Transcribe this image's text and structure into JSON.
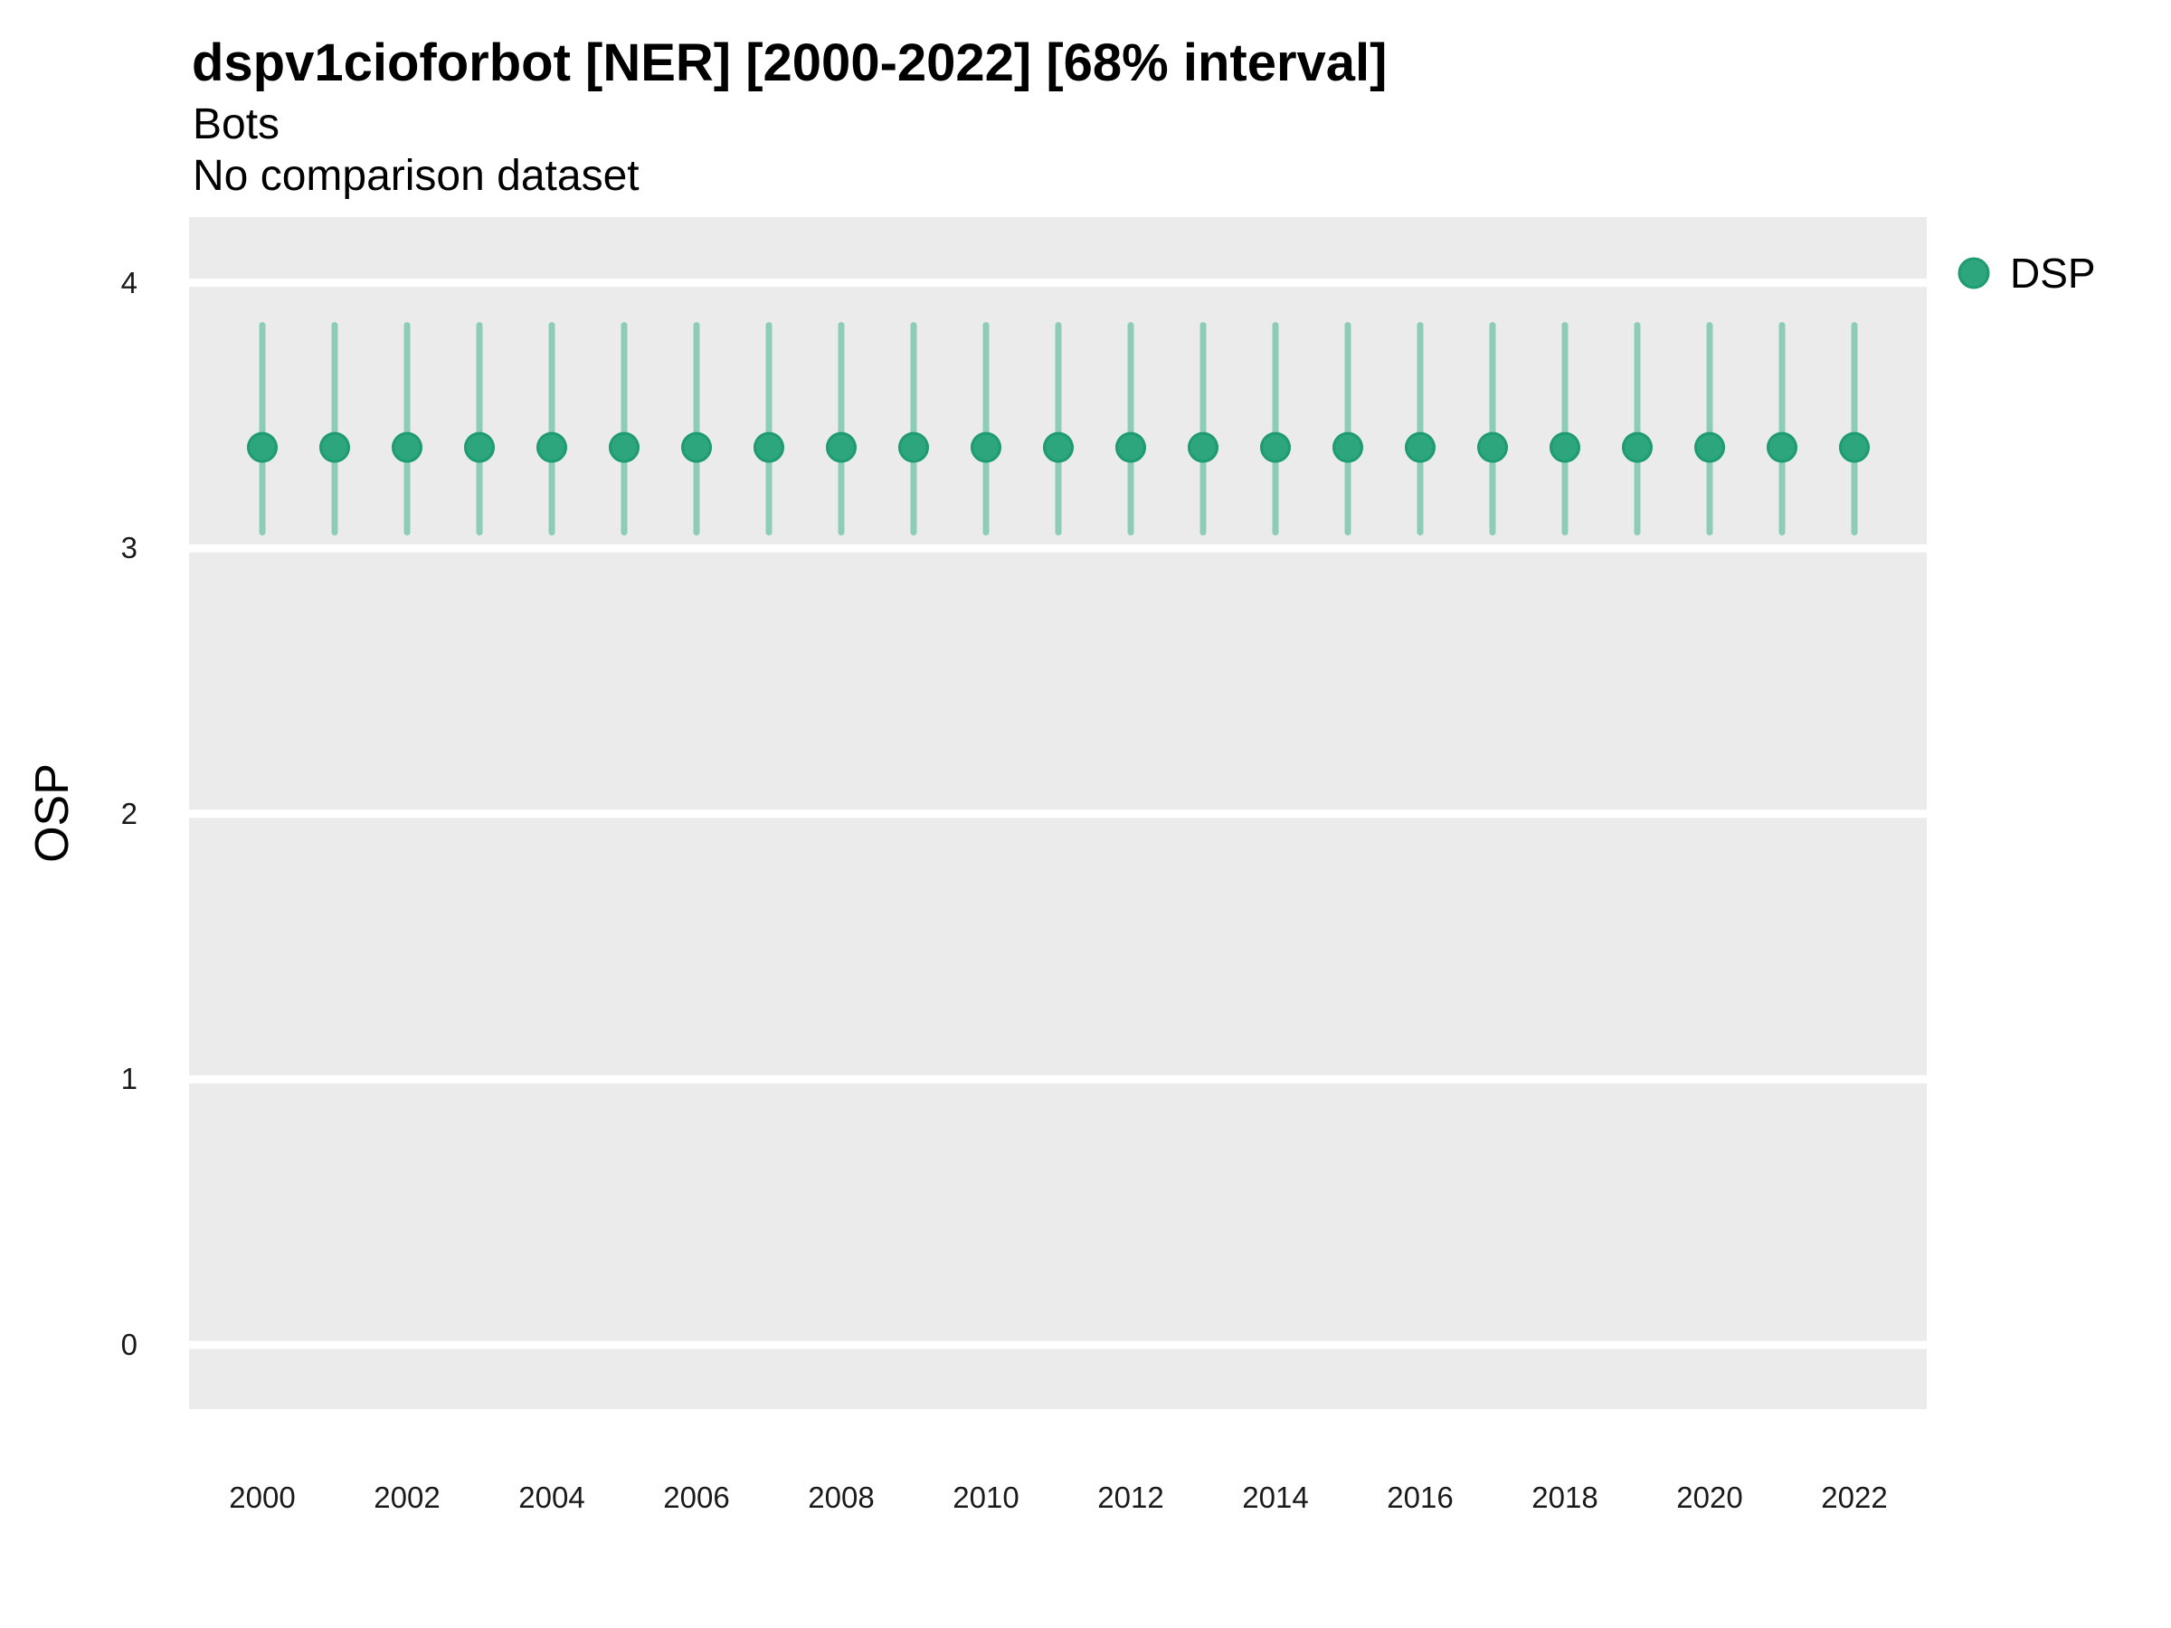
{
  "header": {
    "title": "dspv1cioforbot [NER] [2000-2022] [68% interval]",
    "subtitle": "Bots",
    "comparison_note": "No comparison dataset"
  },
  "y_axis": {
    "label": "OSP"
  },
  "legend": {
    "label": "DSP"
  },
  "colors": {
    "panel_bg": "#ebebeb",
    "gridline": "#ffffff",
    "point_fill": "#2da57d",
    "point_stroke": "#1e9b71",
    "interval_line": "#8dcdb8",
    "text": "#000000"
  },
  "chart_data": {
    "type": "scatter",
    "title": "dspv1cioforbot [NER] [2000-2022] [68% interval]",
    "subtitle": "Bots",
    "note": "No comparison dataset",
    "xlabel": "",
    "ylabel": "OSP",
    "interval": "68%",
    "legend_position": "right",
    "grid": "horizontal-major-only",
    "xlim": [
      1999,
      2023
    ],
    "ylim": [
      -0.24,
      4.25
    ],
    "x_ticks": [
      2000,
      2002,
      2004,
      2006,
      2008,
      2010,
      2012,
      2014,
      2016,
      2018,
      2020,
      2022
    ],
    "y_ticks": [
      0,
      1,
      2,
      3,
      4
    ],
    "x": [
      2000,
      2001,
      2002,
      2003,
      2004,
      2005,
      2006,
      2007,
      2008,
      2009,
      2010,
      2011,
      2012,
      2013,
      2014,
      2015,
      2016,
      2017,
      2018,
      2019,
      2020,
      2021,
      2022
    ],
    "series": [
      {
        "name": "DSP",
        "values": [
          3.38,
          3.38,
          3.38,
          3.38,
          3.38,
          3.38,
          3.38,
          3.38,
          3.38,
          3.38,
          3.38,
          3.38,
          3.38,
          3.38,
          3.38,
          3.38,
          3.38,
          3.38,
          3.38,
          3.38,
          3.38,
          3.38,
          3.38
        ],
        "lower_68": [
          3.06,
          3.06,
          3.06,
          3.06,
          3.06,
          3.06,
          3.06,
          3.06,
          3.06,
          3.06,
          3.06,
          3.06,
          3.06,
          3.06,
          3.06,
          3.06,
          3.06,
          3.06,
          3.06,
          3.06,
          3.06,
          3.06,
          3.06
        ],
        "upper_68": [
          3.84,
          3.84,
          3.84,
          3.84,
          3.84,
          3.84,
          3.84,
          3.84,
          3.84,
          3.84,
          3.84,
          3.84,
          3.84,
          3.84,
          3.84,
          3.84,
          3.84,
          3.84,
          3.84,
          3.84,
          3.84,
          3.84,
          3.84
        ]
      }
    ]
  }
}
